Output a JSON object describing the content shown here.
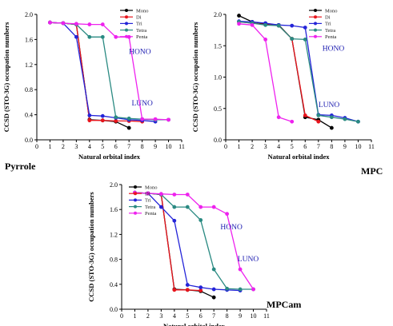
{
  "chart_data": [
    {
      "type": "line",
      "panel_label": "Pyrrole",
      "xlabel": "Natural orbital index",
      "ylabel": "CCSD (STO-3G) occupation numbers",
      "xlim": [
        0,
        11
      ],
      "ylim": [
        0.0,
        2.0
      ],
      "xticks": [
        0,
        1,
        2,
        3,
        4,
        5,
        6,
        7,
        8,
        9,
        10,
        11
      ],
      "yticks": [
        "0.0",
        "0.4",
        "0.8",
        "1.2",
        "1.6",
        "2.0"
      ],
      "legend": "top-right",
      "annotations": [
        {
          "text": "HONO",
          "x": 7.0,
          "y": 1.37
        },
        {
          "text": "LUNO",
          "x": 7.2,
          "y": 0.55
        }
      ],
      "series": [
        {
          "name": "Mono",
          "color": "#000000",
          "x": [
            1,
            2,
            3,
            4,
            5,
            6,
            7
          ],
          "y": [
            1.87,
            1.86,
            1.84,
            0.32,
            0.31,
            0.29,
            0.19
          ]
        },
        {
          "name": "Di",
          "color": "#e8141c",
          "x": [
            1,
            2,
            3,
            4,
            5,
            6,
            7,
            8
          ],
          "y": [
            1.87,
            1.86,
            1.84,
            0.31,
            0.31,
            0.3,
            0.3,
            0.29
          ]
        },
        {
          "name": "Tri",
          "color": "#2424d8",
          "x": [
            1,
            2,
            3,
            4,
            5,
            6,
            7,
            8,
            9
          ],
          "y": [
            1.87,
            1.86,
            1.64,
            0.39,
            0.38,
            0.35,
            0.32,
            0.31,
            0.29
          ]
        },
        {
          "name": "Tetra",
          "color": "#2a8a82",
          "x": [
            1,
            2,
            3,
            4,
            5,
            6,
            7,
            8,
            9,
            10
          ],
          "y": [
            1.87,
            1.86,
            1.84,
            1.64,
            1.64,
            0.36,
            0.34,
            0.33,
            0.32,
            0.32
          ]
        },
        {
          "name": "Penta",
          "color": "#ee22ee",
          "x": [
            1,
            2,
            3,
            4,
            5,
            6,
            7,
            8,
            9,
            10
          ],
          "y": [
            1.87,
            1.86,
            1.85,
            1.84,
            1.84,
            1.64,
            1.64,
            0.33,
            0.33,
            0.32
          ]
        }
      ]
    },
    {
      "type": "line",
      "panel_label": "MPC",
      "xlabel": "Natural orbital index",
      "ylabel": "CCSD (STO-3G) occupation numbers",
      "xlim": [
        0,
        11
      ],
      "ylim": [
        0.0,
        2.0
      ],
      "xticks": [
        0,
        1,
        2,
        3,
        4,
        5,
        6,
        7,
        8,
        9,
        10,
        11
      ],
      "yticks": [
        "0.0",
        "0.5",
        "1.0",
        "1.5",
        "2.0"
      ],
      "legend": "top-right",
      "annotations": [
        {
          "text": "HONO",
          "x": 7.3,
          "y": 1.42
        },
        {
          "text": "LUNO",
          "x": 7.0,
          "y": 0.52
        }
      ],
      "series": [
        {
          "name": "Mono",
          "color": "#000000",
          "x": [
            1,
            2,
            3,
            4,
            5,
            6,
            7,
            8
          ],
          "y": [
            1.98,
            1.88,
            1.85,
            1.83,
            1.61,
            0.36,
            0.32,
            0.19
          ]
        },
        {
          "name": "Di",
          "color": "#e8141c",
          "x": [
            1,
            2,
            3,
            4,
            5,
            6,
            7
          ],
          "y": [
            1.88,
            1.86,
            1.84,
            1.82,
            1.61,
            0.39,
            0.29
          ]
        },
        {
          "name": "Tri",
          "color": "#2424d8",
          "x": [
            1,
            2,
            3,
            4,
            5,
            6,
            7,
            8,
            9,
            10
          ],
          "y": [
            1.89,
            1.88,
            1.86,
            1.83,
            1.82,
            1.79,
            0.4,
            0.39,
            0.35,
            0.29
          ]
        },
        {
          "name": "Tetra",
          "color": "#2a8a82",
          "x": [
            1,
            2,
            3,
            4,
            5,
            6,
            7,
            8,
            9,
            10
          ],
          "y": [
            1.88,
            1.86,
            1.83,
            1.82,
            1.61,
            1.6,
            0.39,
            0.36,
            0.33,
            0.29
          ]
        },
        {
          "name": "Penta",
          "color": "#ee22ee",
          "x": [
            1,
            2,
            3,
            4,
            5
          ],
          "y": [
            1.85,
            1.83,
            1.6,
            0.36,
            0.29
          ]
        }
      ]
    },
    {
      "type": "line",
      "panel_label": "MPCam",
      "xlabel": "Natural orbital index",
      "ylabel": "CCSD (STO-3G) occupation numbers",
      "xlim": [
        0,
        11
      ],
      "ylim": [
        0.0,
        2.0
      ],
      "xticks": [
        0,
        1,
        2,
        3,
        4,
        5,
        6,
        7,
        8,
        9,
        10,
        11
      ],
      "yticks": [
        "0.0",
        "0.4",
        "0.8",
        "1.2",
        "1.6",
        "2.0"
      ],
      "legend": "top-left",
      "annotations": [
        {
          "text": "HONO",
          "x": 7.5,
          "y": 1.28
        },
        {
          "text": "LUNO",
          "x": 8.8,
          "y": 0.77
        }
      ],
      "series": [
        {
          "name": "Mono",
          "color": "#000000",
          "x": [
            1,
            2,
            3,
            4,
            5,
            6,
            7
          ],
          "y": [
            1.87,
            1.86,
            1.84,
            0.32,
            0.31,
            0.29,
            0.19
          ]
        },
        {
          "name": "Di",
          "color": "#e8141c",
          "x": [
            1,
            2,
            3,
            4,
            5,
            6
          ],
          "y": [
            1.87,
            1.86,
            1.84,
            0.31,
            0.31,
            0.3
          ]
        },
        {
          "name": "Tri",
          "color": "#2424d8",
          "x": [
            1,
            2,
            3,
            4,
            5,
            6,
            7,
            8,
            9
          ],
          "y": [
            1.87,
            1.86,
            1.64,
            1.42,
            0.39,
            0.35,
            0.32,
            0.31,
            0.3
          ]
        },
        {
          "name": "Tetra",
          "color": "#2a8a82",
          "x": [
            1,
            2,
            3,
            4,
            5,
            6,
            7,
            8,
            9,
            10
          ],
          "y": [
            1.87,
            1.86,
            1.84,
            1.64,
            1.64,
            1.43,
            0.64,
            0.33,
            0.32,
            0.32
          ]
        },
        {
          "name": "Penta",
          "color": "#ee22ee",
          "x": [
            1,
            2,
            3,
            4,
            5,
            6,
            7,
            8,
            9,
            10
          ],
          "y": [
            1.87,
            1.86,
            1.85,
            1.84,
            1.84,
            1.64,
            1.64,
            1.53,
            0.64,
            0.32
          ]
        }
      ]
    }
  ]
}
